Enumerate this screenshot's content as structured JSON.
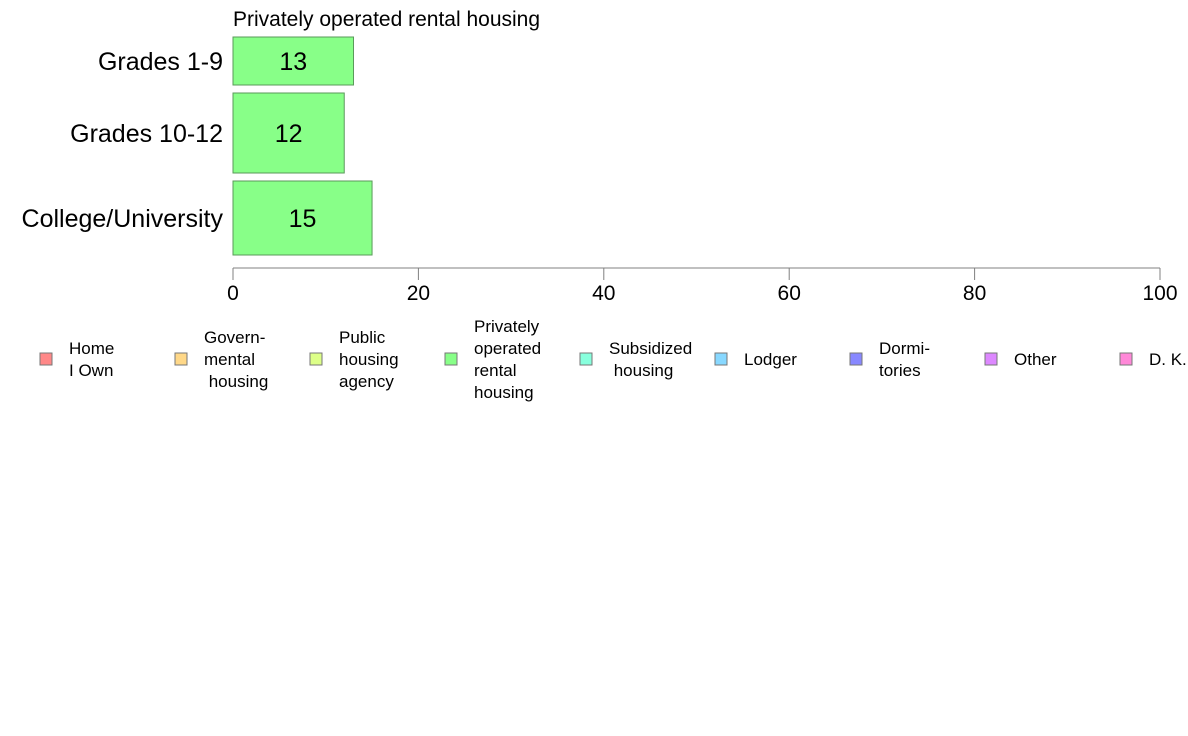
{
  "chart_data": {
    "type": "bar",
    "orientation": "horizontal",
    "title": "Privately operated rental housing",
    "categories": [
      "Grades 1-9",
      "Grades 10-12",
      "College/University"
    ],
    "series": [
      {
        "name": "Privately operated rental housing",
        "values": [
          13,
          12,
          15
        ],
        "color": "#88ff88"
      }
    ],
    "data_labels": [
      "13",
      "12",
      "15"
    ],
    "xlim": [
      0,
      100
    ],
    "x_ticks": [
      0,
      20,
      40,
      60,
      80,
      100
    ],
    "x_tick_labels": [
      "0",
      "20",
      "40",
      "60",
      "80",
      "100"
    ],
    "grid": false,
    "legend": {
      "placement": "bottom",
      "entries": [
        {
          "lines": [
            "Home",
            "I Own"
          ],
          "color": "#ff8888"
        },
        {
          "lines": [
            "Govern-",
            "mental",
            " housing"
          ],
          "color": "#ffd888"
        },
        {
          "lines": [
            "Public",
            "housing",
            "agency"
          ],
          "color": "#ddff88"
        },
        {
          "lines": [
            "Privately",
            "operated",
            "rental",
            "housing"
          ],
          "color": "#88ff88"
        },
        {
          "lines": [
            "Subsidized",
            " housing"
          ],
          "color": "#88ffdd"
        },
        {
          "lines": [
            "Lodger"
          ],
          "color": "#88d8ff"
        },
        {
          "lines": [
            "Dormi-",
            "tories"
          ],
          "color": "#8888ff"
        },
        {
          "lines": [
            "Other"
          ],
          "color": "#dd88ff"
        },
        {
          "lines": [
            "D. K."
          ],
          "color": "#ff88d8"
        }
      ]
    }
  }
}
